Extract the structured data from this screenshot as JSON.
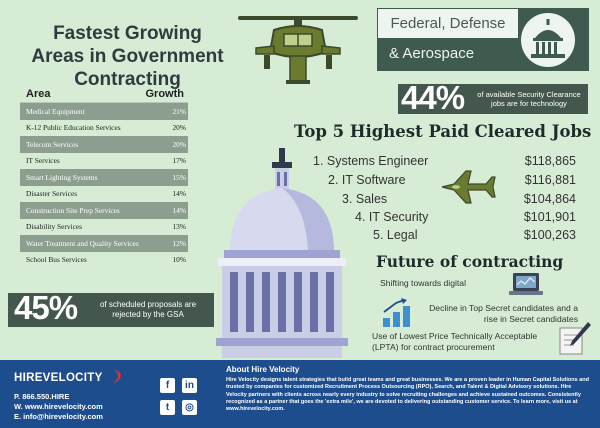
{
  "title": {
    "line1": "Fastest Growing",
    "line2": "Areas in Government",
    "line3": "Contracting"
  },
  "growth_table": {
    "header_area": "Area",
    "header_growth": "Growth",
    "rows": [
      {
        "area": "Medical Equipment",
        "growth": "21%"
      },
      {
        "area": "K-12 Public Education Services",
        "growth": "20%"
      },
      {
        "area": "Telecom Services",
        "growth": "20%"
      },
      {
        "area": "IT Services",
        "growth": "17%"
      },
      {
        "area": "Smart Lighting Systems",
        "growth": "15%"
      },
      {
        "area": "Disaster Services",
        "growth": "14%"
      },
      {
        "area": "Construction Site Prep Services",
        "growth": "14%"
      },
      {
        "area": "Disability Services",
        "growth": "13%"
      },
      {
        "area": "Water Treatment and Quality Services",
        "growth": "12%"
      },
      {
        "area": "School Bus Services",
        "growth": "10%"
      }
    ]
  },
  "sector": {
    "line1": "Federal, Defense",
    "line2": "& Aerospace"
  },
  "stat_clearance": {
    "value": "44%",
    "text": "of available Security Clearance jobs are for technology"
  },
  "top_jobs": {
    "heading": "Top 5 Highest Paid Cleared Jobs",
    "items": [
      {
        "rank_title": "1. Systems Engineer",
        "salary": "$118,865"
      },
      {
        "rank_title": "2. IT Software",
        "salary": "$116,881"
      },
      {
        "rank_title": "3. Sales",
        "salary": "$104,864"
      },
      {
        "rank_title": "4. IT Security",
        "salary": "$101,901"
      },
      {
        "rank_title": "5. Legal",
        "salary": "$100,263"
      }
    ]
  },
  "future": {
    "heading": "Future of contracting",
    "item1": "Shifting towards digital",
    "item2": "Decline in Top Secret candidates and a rise in Secret candidates",
    "item3": "Use of Lowest Price Technically Acceptable (LPTA) for contract procurement"
  },
  "stat_proposals": {
    "value": "45%",
    "text": "of scheduled proposals are rejected by the GSA"
  },
  "footer": {
    "logo": "HIREVELOCITY",
    "phone": "P. 866.550.HIRE",
    "web": "W. www.hirevelocity.com",
    "email": "E. info@hirevelocity.com",
    "about_heading": "About Hire Velocity",
    "about_text": "Hire Velocity designs talent strategies that build great teams and great businesses. We are a proven leader in Human Capital Solutions and trusted by companies for customized Recruitment Process Outsourcing (RPO), Search, and Talent & Digital Advisory solutions. Hire Velocity partners with clients across nearly every industry to solve recruiting challenges and achieve sustained outcomes. Consistently recognized as a partner that goes the 'extra mile', we are devoted to delivering outstanding customer service. To learn more, visit us at www.hirevelocity.com."
  },
  "social_icons": [
    "facebook-icon",
    "linkedin-icon",
    "twitter-icon",
    "instagram-icon"
  ],
  "colors": {
    "background": "#d6ecd5",
    "dark_panel": "#44574d",
    "footer_blue": "#1e4d8e",
    "table_shade": "#8c9e8e"
  }
}
